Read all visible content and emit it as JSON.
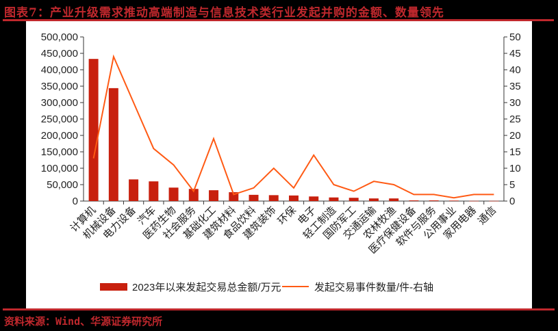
{
  "title": "图表7：产业升级需求推动高端制造与信息技术类行业发起并购的金额、数量领先",
  "source": "资料来源：Wind、华源证券研究所",
  "colors": {
    "bar": "#c8200e",
    "line": "#ff5a14",
    "accent": "#c0282d"
  },
  "legend": {
    "bar_label": "2023年以来发起交易总金额/万元",
    "line_label": "发起交易事件数量/件-右轴"
  },
  "chart_data": {
    "type": "bar+line",
    "title": "产业升级需求推动高端制造与信息技术类行业发起并购的金额、数量领先",
    "categories": [
      "计算机",
      "机械设备",
      "电力设备",
      "汽车",
      "医药生物",
      "社会服务",
      "基础化工",
      "建筑材料",
      "食品饮料",
      "建筑装饰",
      "环保",
      "电子",
      "轻工制造",
      "国防军工",
      "交通运输",
      "农林牧渔",
      "医疗保健设备",
      "软件与服务",
      "公用事业",
      "家用电器",
      "通信"
    ],
    "series": [
      {
        "name": "2023年以来发起交易总金额/万元",
        "type": "bar",
        "axis": "left",
        "values": [
          433000,
          344000,
          66000,
          60000,
          41000,
          37000,
          33000,
          27000,
          19000,
          18000,
          17000,
          14000,
          11000,
          10000,
          8000,
          8000,
          2000,
          2000,
          1500,
          500,
          500
        ]
      },
      {
        "name": "发起交易事件数量/件-右轴",
        "type": "line",
        "axis": "right",
        "values": [
          13,
          44,
          30,
          16,
          11,
          3,
          19,
          2,
          4,
          10,
          4,
          14,
          5,
          3,
          6,
          5,
          2,
          2,
          1,
          2,
          2
        ]
      }
    ],
    "y_left": {
      "range": [
        0,
        500000
      ],
      "ticks": [
        "0",
        "50,000",
        "100,000",
        "150,000",
        "200,000",
        "250,000",
        "300,000",
        "350,000",
        "400,000",
        "450,000",
        "500,000"
      ]
    },
    "y_right": {
      "range": [
        0,
        50
      ],
      "ticks": [
        "0",
        "5",
        "10",
        "15",
        "20",
        "25",
        "30",
        "35",
        "40",
        "45",
        "50"
      ]
    },
    "xlabel": "",
    "ylabel": "",
    "grid": false,
    "legend_position": "bottom"
  }
}
